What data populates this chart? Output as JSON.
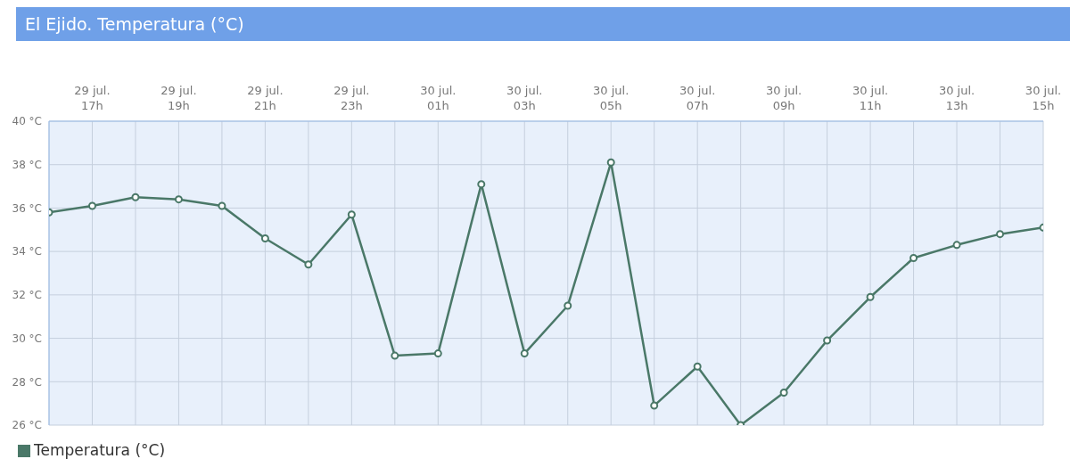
{
  "chart_data": {
    "type": "line",
    "title": "El Ejido. Temperatura (°C)",
    "categories": [
      null,
      "29 jul.\n17h",
      null,
      "29 jul.\n19h",
      null,
      "29 jul.\n21h",
      null,
      "29 jul.\n23h",
      null,
      "30 jul.\n01h",
      null,
      "30 jul.\n03h",
      null,
      "30 jul.\n05h",
      null,
      "30 jul.\n07h",
      null,
      "30 jul.\n09h",
      null,
      "30 jul.\n11h",
      null,
      "30 jul.\n13h",
      null,
      "30 jul.\n15h"
    ],
    "series": [
      {
        "name": "Temperatura (°C)",
        "color": "#4a7868",
        "values": [
          35.8,
          36.1,
          36.5,
          36.4,
          36.1,
          34.6,
          33.4,
          35.7,
          29.2,
          29.3,
          37.1,
          29.3,
          31.5,
          38.1,
          26.9,
          28.7,
          26.0,
          27.5,
          29.9,
          31.9,
          33.7,
          34.3,
          34.8,
          35.1
        ]
      }
    ],
    "ylim": [
      26,
      40
    ],
    "yticks": [
      {
        "value": 26,
        "label": "26 °C"
      },
      {
        "value": 28,
        "label": "28 °C"
      },
      {
        "value": 30,
        "label": "30 °C"
      },
      {
        "value": 32,
        "label": "32 °C"
      },
      {
        "value": 34,
        "label": "34 °C"
      },
      {
        "value": 36,
        "label": "36 °C"
      },
      {
        "value": 38,
        "label": "38 °C"
      },
      {
        "value": 40,
        "label": "40 °C"
      }
    ],
    "grid": true,
    "legend": "bottom left",
    "marker": "circle",
    "line_style": "solid"
  }
}
